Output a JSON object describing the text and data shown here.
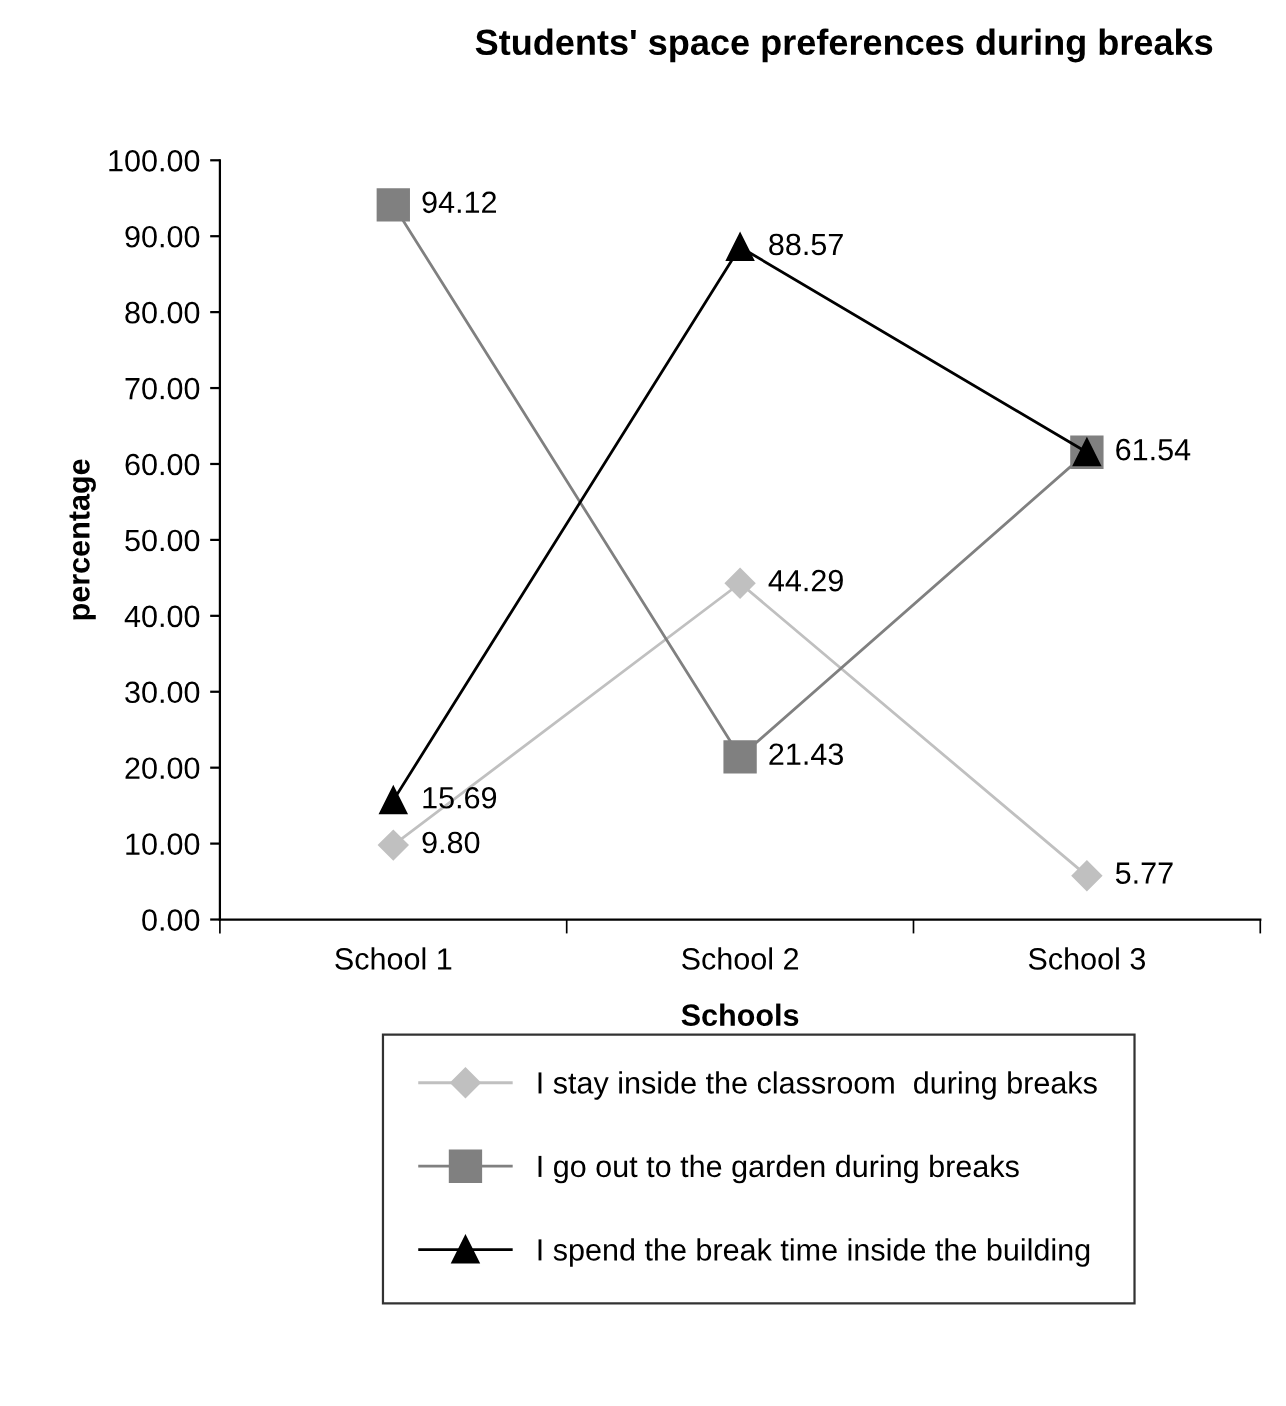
{
  "chart_data": {
    "type": "line",
    "title": "Students' space preferences during breaks",
    "xlabel": "Schools",
    "ylabel": "percentage",
    "categories": [
      "School 1",
      "School 2",
      "School 3"
    ],
    "series": [
      {
        "name": "I stay inside the classroom  during breaks",
        "color": "#c0c0c0",
        "marker": "diamond",
        "values": [
          9.8,
          44.29,
          5.77
        ],
        "value_labels": [
          "9.80",
          "44.29",
          "5.77"
        ]
      },
      {
        "name": "I go out to the garden during breaks",
        "color": "#808080",
        "marker": "square",
        "values": [
          94.12,
          21.43,
          61.54
        ],
        "value_labels": [
          "94.12",
          "21.43",
          null
        ]
      },
      {
        "name": "I spend the break time inside the building",
        "color": "#000000",
        "marker": "triangle",
        "values": [
          15.69,
          88.57,
          61.54
        ],
        "value_labels": [
          "15.69",
          "88.57",
          "61.54"
        ]
      }
    ],
    "ylim": [
      0,
      100
    ],
    "yticks": [
      {
        "value": 0,
        "label": "0.00"
      },
      {
        "value": 10,
        "label": "10.00"
      },
      {
        "value": 20,
        "label": "20.00"
      },
      {
        "value": 30,
        "label": "30.00"
      },
      {
        "value": 40,
        "label": "40.00"
      },
      {
        "value": 50,
        "label": "50.00"
      },
      {
        "value": 60,
        "label": "60.00"
      },
      {
        "value": 70,
        "label": "70.00"
      },
      {
        "value": 80,
        "label": "80.00"
      },
      {
        "value": 90,
        "label": "90.00"
      },
      {
        "value": 100,
        "label": "100.00"
      }
    ],
    "grid": false,
    "legend": "bottom",
    "line_style": "solid"
  }
}
